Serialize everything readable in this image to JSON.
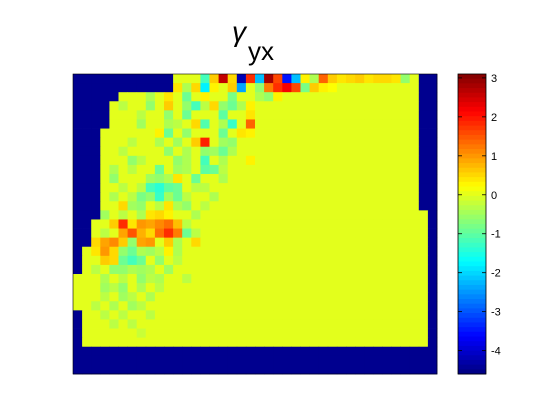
{
  "chart_data": {
    "type": "heatmap",
    "title": "γ",
    "title_subscript": "yx",
    "xlabel": "",
    "ylabel": "",
    "colormap": "jet",
    "mask_color": "#00008f",
    "background_value": 0,
    "colorbar": {
      "range": [
        -4.6,
        3.1
      ],
      "ticks": [
        3,
        2,
        1,
        0,
        -1,
        -2,
        -3,
        -4
      ],
      "tick_labels": [
        "3",
        "2",
        "1",
        "0",
        "-1",
        "-2",
        "-3",
        "-4"
      ]
    },
    "grid": {
      "columns": 40,
      "rows": 33
    },
    "masked_rows": {
      "0": [
        [
          0,
          11
        ],
        [
          38,
          40
        ]
      ],
      "1": [
        [
          0,
          11
        ],
        [
          38,
          40
        ]
      ],
      "2": [
        [
          0,
          5
        ],
        [
          38,
          40
        ]
      ],
      "3": [
        [
          0,
          4
        ],
        [
          38,
          40
        ]
      ],
      "4": [
        [
          0,
          4
        ],
        [
          38,
          40
        ]
      ],
      "5": [
        [
          0,
          4
        ],
        [
          38,
          40
        ]
      ],
      "6": [
        [
          0,
          3
        ],
        [
          38,
          40
        ]
      ],
      "7": [
        [
          0,
          3
        ],
        [
          38,
          40
        ]
      ],
      "8": [
        [
          0,
          3
        ],
        [
          38,
          40
        ]
      ],
      "9": [
        [
          0,
          3
        ],
        [
          38,
          40
        ]
      ],
      "10": [
        [
          0,
          3
        ],
        [
          38,
          40
        ]
      ],
      "11": [
        [
          0,
          3
        ],
        [
          38,
          40
        ]
      ],
      "12": [
        [
          0,
          3
        ],
        [
          38,
          40
        ]
      ],
      "13": [
        [
          0,
          3
        ],
        [
          38,
          40
        ]
      ],
      "14": [
        [
          0,
          3
        ],
        [
          38,
          40
        ]
      ],
      "15": [
        [
          0,
          3
        ],
        [
          39,
          40
        ]
      ],
      "16": [
        [
          0,
          2
        ],
        [
          39,
          40
        ]
      ],
      "17": [
        [
          0,
          2
        ],
        [
          39,
          40
        ]
      ],
      "18": [
        [
          0,
          2
        ],
        [
          39,
          40
        ]
      ],
      "19": [
        [
          0,
          1
        ],
        [
          39,
          40
        ]
      ],
      "20": [
        [
          0,
          1
        ],
        [
          39,
          40
        ]
      ],
      "21": [
        [
          0,
          1
        ],
        [
          39,
          40
        ]
      ],
      "22": [
        [
          39,
          40
        ]
      ],
      "23": [
        [
          39,
          40
        ]
      ],
      "24": [
        [
          39,
          40
        ]
      ],
      "25": [
        [
          39,
          40
        ]
      ],
      "26": [
        [
          0,
          1
        ],
        [
          39,
          40
        ]
      ],
      "27": [
        [
          0,
          1
        ],
        [
          39,
          40
        ]
      ],
      "28": [
        [
          0,
          1
        ],
        [
          39,
          40
        ]
      ],
      "29": [
        [
          0,
          1
        ],
        [
          39,
          40
        ]
      ],
      "30": [
        [
          0,
          40
        ]
      ],
      "31": [
        [
          0,
          40
        ]
      ],
      "32": [
        [
          0,
          40
        ]
      ]
    },
    "cells": [
      [
        0,
        14,
        -1.2
      ],
      [
        0,
        15,
        0.6
      ],
      [
        0,
        16,
        2.6
      ],
      [
        0,
        17,
        0.5
      ],
      [
        0,
        18,
        -4.2
      ],
      [
        0,
        19,
        1.8
      ],
      [
        0,
        20,
        -2.2
      ],
      [
        0,
        21,
        2.8
      ],
      [
        0,
        22,
        1.6
      ],
      [
        0,
        23,
        -3.5
      ],
      [
        0,
        24,
        -2.2
      ],
      [
        0,
        25,
        0.3
      ],
      [
        0,
        26,
        -0.4
      ],
      [
        0,
        27,
        1.4
      ],
      [
        0,
        28,
        0.6
      ],
      [
        0,
        29,
        0.4
      ],
      [
        0,
        30,
        0.5
      ],
      [
        0,
        31,
        0.6
      ],
      [
        0,
        32,
        0.4
      ],
      [
        0,
        33,
        0.5
      ],
      [
        0,
        34,
        0.5
      ],
      [
        0,
        35,
        0.4
      ],
      [
        0,
        36,
        -0.6
      ],
      [
        1,
        11,
        0.4
      ],
      [
        1,
        12,
        -0.4
      ],
      [
        1,
        13,
        0.5
      ],
      [
        1,
        14,
        -1.8
      ],
      [
        1,
        15,
        0.3
      ],
      [
        1,
        17,
        0.6
      ],
      [
        1,
        18,
        -2.4
      ],
      [
        1,
        20,
        -0.6
      ],
      [
        1,
        21,
        1.2
      ],
      [
        1,
        22,
        1.8
      ],
      [
        1,
        23,
        2.2
      ],
      [
        1,
        24,
        1.6
      ],
      [
        1,
        25,
        -0.8
      ],
      [
        1,
        26,
        0.6
      ],
      [
        1,
        27,
        0.3
      ],
      [
        1,
        28,
        0.2
      ],
      [
        2,
        8,
        -0.4
      ],
      [
        2,
        10,
        0.4
      ],
      [
        2,
        12,
        -0.9
      ],
      [
        2,
        14,
        0.3
      ],
      [
        2,
        17,
        -0.8
      ],
      [
        2,
        20,
        -0.4
      ],
      [
        2,
        21,
        -0.6
      ],
      [
        2,
        22,
        0.3
      ],
      [
        3,
        5,
        -0.3
      ],
      [
        3,
        8,
        -0.6
      ],
      [
        3,
        10,
        0.6
      ],
      [
        3,
        12,
        -0.6
      ],
      [
        3,
        13,
        -1.2
      ],
      [
        3,
        14,
        -0.3
      ],
      [
        3,
        15,
        0.5
      ],
      [
        3,
        16,
        -0.6
      ],
      [
        3,
        17,
        -0.9
      ],
      [
        3,
        18,
        -0.4
      ],
      [
        3,
        19,
        0.3
      ],
      [
        4,
        7,
        -0.3
      ],
      [
        4,
        10,
        -0.6
      ],
      [
        4,
        12,
        -0.9
      ],
      [
        4,
        16,
        -1.0
      ],
      [
        4,
        19,
        0.4
      ],
      [
        5,
        7,
        -0.5
      ],
      [
        5,
        10,
        -0.4
      ],
      [
        5,
        11,
        -0.3
      ],
      [
        5,
        13,
        0.5
      ],
      [
        5,
        14,
        -1.1
      ],
      [
        5,
        16,
        -0.4
      ],
      [
        5,
        17,
        -1.3
      ],
      [
        5,
        19,
        1.4
      ],
      [
        6,
        9,
        0.3
      ],
      [
        6,
        10,
        -0.9
      ],
      [
        6,
        12,
        -0.6
      ],
      [
        6,
        16,
        -0.9
      ],
      [
        6,
        18,
        0.4
      ],
      [
        6,
        19,
        0.3
      ],
      [
        7,
        6,
        -0.3
      ],
      [
        7,
        9,
        -0.4
      ],
      [
        7,
        11,
        -0.5
      ],
      [
        7,
        13,
        0.6
      ],
      [
        7,
        14,
        1.9
      ],
      [
        7,
        16,
        -0.5
      ],
      [
        7,
        17,
        -0.6
      ],
      [
        8,
        5,
        -0.3
      ],
      [
        8,
        10,
        -0.6
      ],
      [
        8,
        12,
        -0.4
      ],
      [
        8,
        14,
        -0.6
      ],
      [
        8,
        15,
        -0.5
      ],
      [
        8,
        16,
        -0.9
      ],
      [
        8,
        17,
        -0.4
      ],
      [
        9,
        6,
        -0.6
      ],
      [
        9,
        7,
        -0.3
      ],
      [
        9,
        11,
        -0.6
      ],
      [
        9,
        12,
        -0.4
      ],
      [
        9,
        14,
        -1.2
      ],
      [
        9,
        16,
        -0.4
      ],
      [
        9,
        19,
        0.3
      ],
      [
        10,
        4,
        -0.4
      ],
      [
        10,
        6,
        -0.3
      ],
      [
        10,
        9,
        -0.9
      ],
      [
        10,
        11,
        -0.5
      ],
      [
        10,
        12,
        -0.4
      ],
      [
        10,
        14,
        -1.0
      ],
      [
        10,
        15,
        -0.9
      ],
      [
        10,
        16,
        -0.3
      ],
      [
        11,
        4,
        -0.6
      ],
      [
        11,
        8,
        -0.5
      ],
      [
        11,
        9,
        -0.6
      ],
      [
        11,
        10,
        -0.4
      ],
      [
        11,
        11,
        0.4
      ],
      [
        11,
        13,
        -0.9
      ],
      [
        11,
        16,
        -0.4
      ],
      [
        12,
        5,
        -0.3
      ],
      [
        12,
        7,
        -0.3
      ],
      [
        12,
        8,
        -1.2
      ],
      [
        12,
        9,
        -1.4
      ],
      [
        12,
        10,
        -1.0
      ],
      [
        12,
        11,
        -0.9
      ],
      [
        12,
        13,
        -0.3
      ],
      [
        12,
        14,
        -0.3
      ],
      [
        13,
        4,
        -0.4
      ],
      [
        13,
        6,
        -0.3
      ],
      [
        13,
        7,
        -0.8
      ],
      [
        13,
        8,
        -0.6
      ],
      [
        13,
        9,
        -1.3
      ],
      [
        13,
        10,
        -0.5
      ],
      [
        13,
        11,
        -0.9
      ],
      [
        13,
        12,
        -0.3
      ],
      [
        13,
        15,
        -0.4
      ],
      [
        14,
        5,
        0.5
      ],
      [
        14,
        6,
        -0.5
      ],
      [
        14,
        7,
        -0.6
      ],
      [
        14,
        9,
        -0.3
      ],
      [
        14,
        10,
        0.4
      ],
      [
        14,
        11,
        -0.4
      ],
      [
        14,
        12,
        -0.6
      ],
      [
        14,
        14,
        -0.3
      ],
      [
        15,
        3,
        -0.5
      ],
      [
        15,
        5,
        -0.3
      ],
      [
        15,
        7,
        -0.4
      ],
      [
        15,
        8,
        0.4
      ],
      [
        15,
        9,
        0.5
      ],
      [
        15,
        10,
        0.3
      ],
      [
        15,
        13,
        -0.4
      ],
      [
        16,
        4,
        0.6
      ],
      [
        16,
        5,
        1.8
      ],
      [
        16,
        6,
        0.4
      ],
      [
        16,
        7,
        1.0
      ],
      [
        16,
        8,
        0.9
      ],
      [
        16,
        9,
        1.1
      ],
      [
        16,
        10,
        1.3
      ],
      [
        16,
        11,
        0.7
      ],
      [
        16,
        12,
        -0.3
      ],
      [
        17,
        3,
        -0.3
      ],
      [
        17,
        5,
        0.9
      ],
      [
        17,
        6,
        1.5
      ],
      [
        17,
        7,
        0.8
      ],
      [
        17,
        8,
        0.5
      ],
      [
        17,
        9,
        1.3
      ],
      [
        17,
        10,
        1.8
      ],
      [
        17,
        11,
        1.2
      ],
      [
        17,
        12,
        -0.9
      ],
      [
        17,
        13,
        -0.3
      ],
      [
        18,
        2,
        0.5
      ],
      [
        18,
        3,
        0.9
      ],
      [
        18,
        4,
        1.1
      ],
      [
        18,
        5,
        0.6
      ],
      [
        18,
        6,
        -0.6
      ],
      [
        18,
        7,
        0.9
      ],
      [
        18,
        8,
        1.0
      ],
      [
        18,
        10,
        0.6
      ],
      [
        18,
        11,
        -0.4
      ],
      [
        18,
        13,
        0.5
      ],
      [
        19,
        2,
        0.4
      ],
      [
        19,
        3,
        1.0
      ],
      [
        19,
        4,
        0.5
      ],
      [
        19,
        5,
        -0.6
      ],
      [
        19,
        6,
        -0.9
      ],
      [
        19,
        7,
        -0.4
      ],
      [
        19,
        8,
        -0.5
      ],
      [
        19,
        9,
        -0.3
      ],
      [
        19,
        10,
        0.3
      ],
      [
        19,
        11,
        -0.4
      ],
      [
        20,
        3,
        0.6
      ],
      [
        20,
        4,
        0.5
      ],
      [
        20,
        5,
        -0.9
      ],
      [
        20,
        6,
        -1.2
      ],
      [
        20,
        7,
        -0.9
      ],
      [
        20,
        9,
        -0.6
      ],
      [
        20,
        11,
        -0.3
      ],
      [
        21,
        2,
        -0.3
      ],
      [
        21,
        4,
        -0.6
      ],
      [
        21,
        5,
        -0.6
      ],
      [
        21,
        6,
        -0.4
      ],
      [
        21,
        7,
        -0.5
      ],
      [
        21,
        8,
        -0.4
      ],
      [
        21,
        10,
        -0.5
      ],
      [
        22,
        3,
        -0.4
      ],
      [
        22,
        5,
        -0.3
      ],
      [
        22,
        7,
        -0.6
      ],
      [
        22,
        8,
        -0.3
      ],
      [
        22,
        9,
        -0.4
      ],
      [
        22,
        12,
        -0.3
      ],
      [
        23,
        3,
        -0.5
      ],
      [
        23,
        4,
        -0.3
      ],
      [
        23,
        5,
        -0.6
      ],
      [
        23,
        7,
        -0.4
      ],
      [
        23,
        9,
        -0.3
      ],
      [
        24,
        3,
        -0.3
      ],
      [
        24,
        5,
        -0.5
      ],
      [
        24,
        6,
        -0.3
      ],
      [
        24,
        8,
        -0.4
      ],
      [
        25,
        2,
        -0.3
      ],
      [
        25,
        4,
        -0.4
      ],
      [
        25,
        6,
        -0.5
      ],
      [
        25,
        7,
        -0.3
      ],
      [
        26,
        3,
        -0.3
      ],
      [
        26,
        5,
        -0.3
      ],
      [
        26,
        8,
        -0.3
      ],
      [
        27,
        4,
        -0.3
      ],
      [
        27,
        6,
        -0.3
      ],
      [
        28,
        7,
        -0.2
      ]
    ]
  }
}
